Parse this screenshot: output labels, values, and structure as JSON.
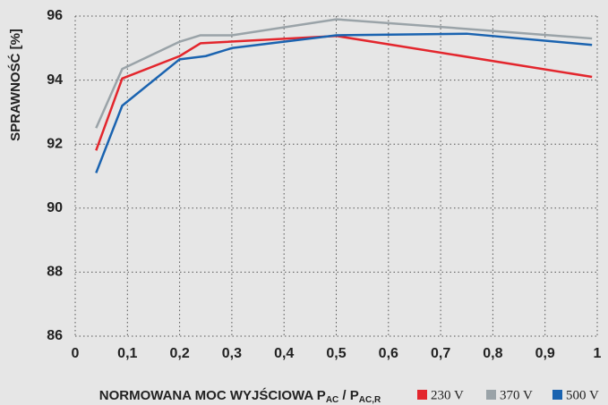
{
  "chart_data": {
    "type": "line",
    "y_label": "SPRAWNOŚĆ [%]",
    "x_label": {
      "text": "NORMOWANA MOC WYJŚCIOWA P",
      "sub1": "AC",
      "mid": " / P",
      "sub2": "AC,R"
    },
    "xlim": [
      0,
      1
    ],
    "ylim": [
      86,
      96
    ],
    "xticks": [
      0,
      {
        "value": 0.1,
        "label": "0,1"
      },
      {
        "value": 0.2,
        "label": "0,2"
      },
      {
        "value": 0.3,
        "label": "0,3"
      },
      {
        "value": 0.4,
        "label": "0,4"
      },
      {
        "value": 0.5,
        "label": "0,5"
      },
      {
        "value": 0.6,
        "label": "0,6"
      },
      {
        "value": 0.7,
        "label": "0,7"
      },
      {
        "value": 0.8,
        "label": "0,8"
      },
      {
        "value": 0.9,
        "label": "0,9"
      },
      1
    ],
    "yticks": [
      86,
      88,
      90,
      92,
      94,
      96
    ],
    "grid": true,
    "series": [
      {
        "name": "230 V",
        "color": "#e3262d",
        "x": [
          0.04,
          0.09,
          0.2,
          0.24,
          0.5,
          0.99
        ],
        "values": [
          91.8,
          94.05,
          94.75,
          95.15,
          95.38,
          94.1
        ]
      },
      {
        "name": "370 V",
        "color": "#9aa3a8",
        "x": [
          0.04,
          0.09,
          0.2,
          0.24,
          0.3,
          0.5,
          0.75,
          0.99
        ],
        "values": [
          92.5,
          94.35,
          95.2,
          95.4,
          95.4,
          95.9,
          95.6,
          95.3
        ]
      },
      {
        "name": "500 V",
        "color": "#1a63b0",
        "x": [
          0.04,
          0.09,
          0.2,
          0.25,
          0.3,
          0.5,
          0.75,
          0.99
        ],
        "values": [
          91.1,
          93.2,
          94.65,
          94.75,
          95.0,
          95.4,
          95.45,
          95.1
        ]
      }
    ]
  }
}
